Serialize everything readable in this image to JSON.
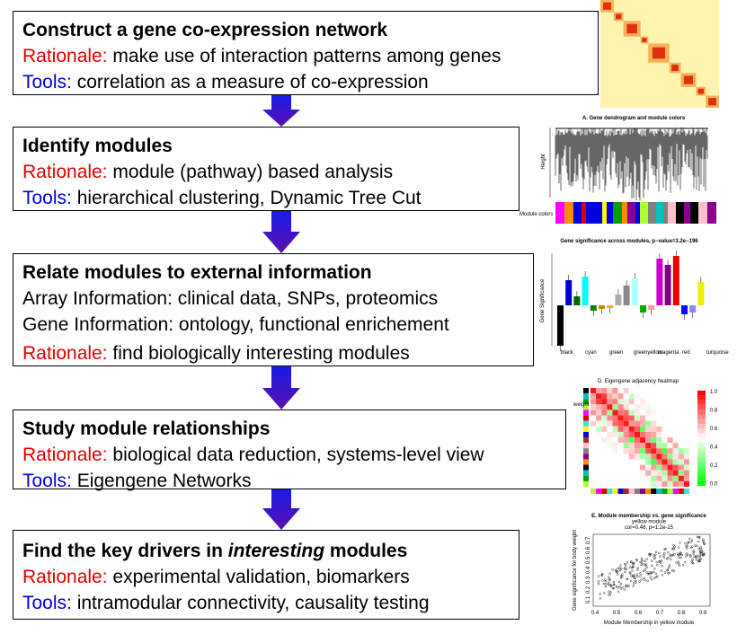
{
  "steps": [
    {
      "title": "Construct a gene co-expression network",
      "lines": [
        {
          "label": "Rationale:",
          "text": "make use of interaction patterns among genes"
        },
        {
          "label": "Tools:",
          "text": "correlation as a measure of co-expression"
        }
      ]
    },
    {
      "title": "Identify modules",
      "lines": [
        {
          "label": "Rationale:",
          "text": "module (pathway) based analysis"
        },
        {
          "label": "Tools:",
          "text": "hierarchical clustering, Dynamic Tree Cut"
        }
      ]
    },
    {
      "title": "Relate modules to external information",
      "lines": [
        {
          "text": "Array Information: clinical data, SNPs, proteomics"
        },
        {
          "text": "Gene Information: ontology, functional enrichement"
        },
        {
          "label": "Rationale:",
          "text": "find biologically interesting modules"
        }
      ]
    },
    {
      "title": "Study module relationships",
      "lines": [
        {
          "label": "Rationale:",
          "text": "biological data reduction, systems-level view"
        },
        {
          "label": "Tools:",
          "text": "Eigengene Networks"
        }
      ]
    },
    {
      "title_parts": [
        "Find the key drivers in ",
        "interesting",
        " modules"
      ],
      "lines": [
        {
          "label": "Rationale:",
          "text": "experimental validation, biomarkers"
        },
        {
          "label": "Tools:",
          "text": "intramodular connectivity, causality testing"
        }
      ]
    }
  ],
  "thumbnails": {
    "dendrogram": {
      "title": "A. Gene dendrogram and module colors",
      "ylabel": "Height",
      "colors_label": "Module colors"
    },
    "barplot": {
      "title": "Gene significance across modules, p−value=3.2e−196",
      "ylabel": "Gene Significance",
      "xlabels": [
        "black",
        "cyan",
        "green",
        "greenyellow",
        "magenta",
        "red",
        "turquoise"
      ]
    },
    "heatmap": {
      "title": "D. Eigengene adjacency heatmap",
      "row_label": "weight",
      "scale_ticks": [
        "1.0",
        "0.8",
        "0.6",
        "0.4",
        "0.2",
        "0.0"
      ]
    },
    "scatter": {
      "title_lines": [
        "E. Module membership vs. gene significance",
        "yellow module",
        "cor=0.46, p=1.2e-15"
      ],
      "xlabel": "Module Membership in yellow module",
      "ylabel": "Gene significance for body weight",
      "xticks": [
        "0.4",
        "0.5",
        "0.6",
        "0.7",
        "0.8",
        "0.9"
      ],
      "yticks": [
        "0.1",
        "0.2",
        "0.3",
        "0.4",
        "0.5",
        "0.6",
        "0.7"
      ]
    }
  }
}
